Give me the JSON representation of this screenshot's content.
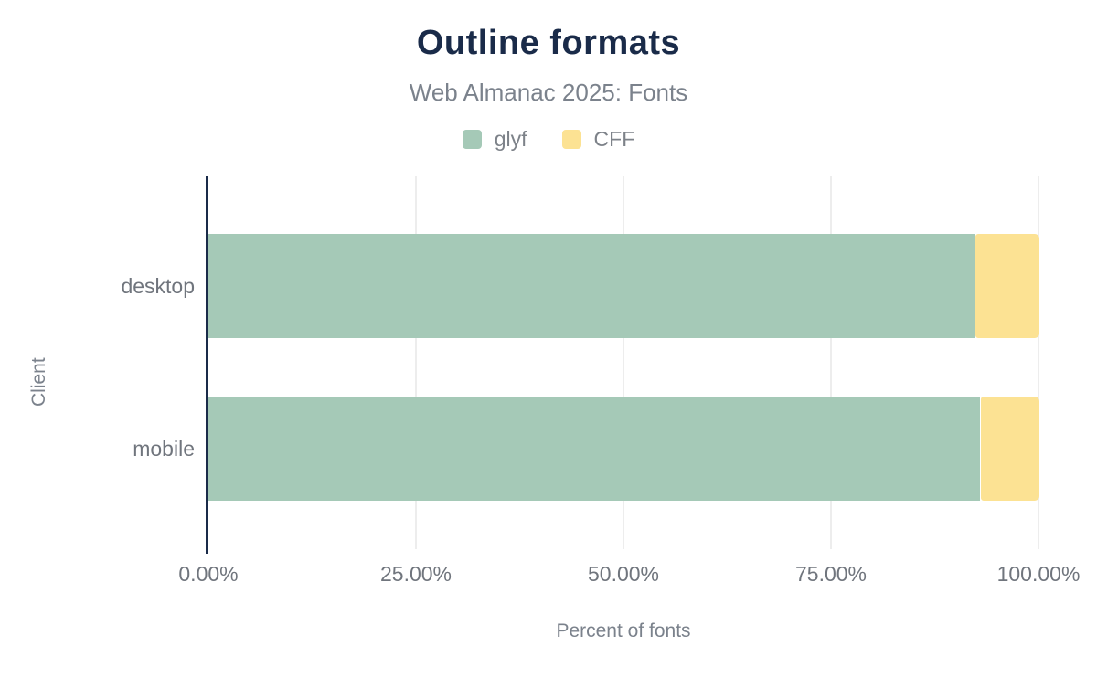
{
  "chart_data": {
    "type": "bar",
    "orientation": "horizontal",
    "stacked": true,
    "title": "Outline formats",
    "subtitle": "Web Almanac 2025: Fonts",
    "xlabel": "Percent of fonts",
    "ylabel": "Client",
    "categories": [
      "desktop",
      "mobile"
    ],
    "series": [
      {
        "name": "glyf",
        "color": "#a5c9b7",
        "values": [
          92.3,
          93.0
        ]
      },
      {
        "name": "CFF",
        "color": "#fce293",
        "values": [
          7.7,
          7.0
        ]
      }
    ],
    "xlim": [
      0,
      100
    ],
    "x_ticks": [
      {
        "value": 0,
        "label": "0.00%"
      },
      {
        "value": 25,
        "label": "25.00%"
      },
      {
        "value": 50,
        "label": "50.00%"
      },
      {
        "value": 75,
        "label": "75.00%"
      },
      {
        "value": 100,
        "label": "100.00%"
      }
    ],
    "grid": true,
    "legend_position": "top",
    "colors": {
      "title": "#1a2b49",
      "axis_line": "#1a2b49",
      "gridline": "#ededed",
      "muted_text": "#70757d"
    }
  }
}
